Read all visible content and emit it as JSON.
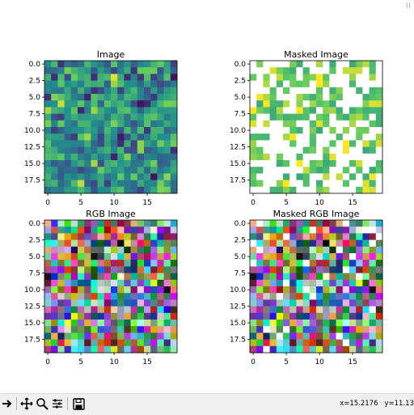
{
  "window": {
    "corner_glyph": "⁞⁞"
  },
  "panels": [
    {
      "title": "Image"
    },
    {
      "title": "Masked Image"
    },
    {
      "title": "RGB Image"
    },
    {
      "title": "Masked RGB Image"
    }
  ],
  "axes": {
    "y_ticks": [
      "0.0",
      "2.5",
      "5.0",
      "7.5",
      "10.0",
      "12.5",
      "15.0",
      "17.5"
    ],
    "x_ticks": [
      "0",
      "5",
      "10",
      "15"
    ]
  },
  "toolbar": {
    "buttons": [
      "back-arrow",
      "pan",
      "zoom",
      "configure-subplots",
      "save"
    ],
    "coords_x": "x=15.2176",
    "coords_y": "y=11.13"
  },
  "chart_data": [
    {
      "type": "heatmap",
      "title": "Image",
      "grid": [
        20,
        20
      ],
      "colormap": "viridis",
      "xlim": [
        -0.5,
        19.5
      ],
      "ylim": [
        19.5,
        -0.5
      ],
      "x_ticks": [
        0,
        5,
        10,
        15
      ],
      "y_ticks": [
        0.0,
        2.5,
        5.0,
        7.5,
        10.0,
        12.5,
        15.0,
        17.5
      ]
    },
    {
      "type": "heatmap",
      "title": "Masked Image",
      "grid": [
        20,
        20
      ],
      "colormap": "viridis",
      "masked_color": "#ffffff",
      "xlim": [
        -0.5,
        19.5
      ],
      "ylim": [
        19.5,
        -0.5
      ],
      "x_ticks": [
        0,
        5,
        10,
        15
      ],
      "y_ticks": [
        0.0,
        2.5,
        5.0,
        7.5,
        10.0,
        12.5,
        15.0,
        17.5
      ]
    },
    {
      "type": "heatmap",
      "title": "RGB Image",
      "grid": [
        20,
        20
      ],
      "colormap": "rgb",
      "xlim": [
        -0.5,
        19.5
      ],
      "ylim": [
        19.5,
        -0.5
      ],
      "x_ticks": [
        0,
        5,
        10,
        15
      ],
      "y_ticks": [
        0.0,
        2.5,
        5.0,
        7.5,
        10.0,
        12.5,
        15.0,
        17.5
      ]
    },
    {
      "type": "heatmap",
      "title": "Masked RGB Image",
      "grid": [
        20,
        20
      ],
      "colormap": "rgb",
      "xlim": [
        -0.5,
        19.5
      ],
      "ylim": [
        19.5,
        -0.5
      ],
      "x_ticks": [
        0,
        5,
        10,
        15
      ],
      "y_ticks": [
        0.0,
        2.5,
        5.0,
        7.5,
        10.0,
        12.5,
        15.0,
        17.5
      ]
    }
  ]
}
